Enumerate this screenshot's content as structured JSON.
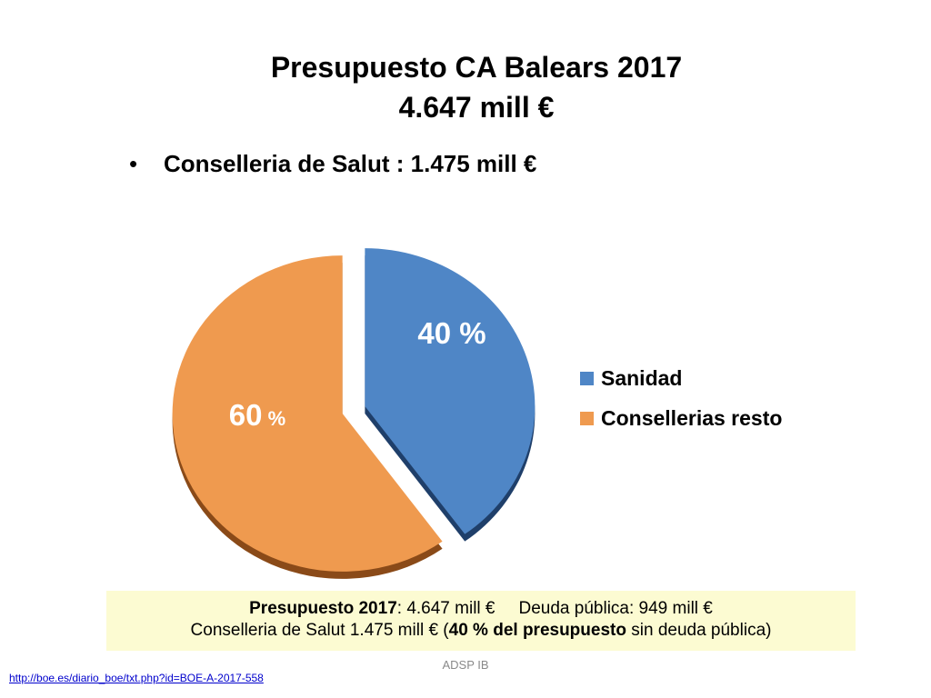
{
  "title": {
    "line1": "Presupuesto CA Balears 2017",
    "line2": "4.647 mill €"
  },
  "bullet": {
    "symbol": "•",
    "text": "Conselleria de Salut : 1.475 mill €"
  },
  "chart_data": {
    "type": "pie",
    "exploded": true,
    "categories": [
      "Sanidad",
      "Consellerias resto"
    ],
    "values": [
      40,
      60
    ],
    "data_labels": [
      {
        "number": "40",
        "unit": " %"
      },
      {
        "number": "60",
        "unit": " %"
      }
    ],
    "colors": [
      "#4f86c6",
      "#ef9a4f"
    ],
    "shadow_colors": [
      "#1f3f6a",
      "#8a4a18"
    ],
    "legend": {
      "position": "right",
      "entries": [
        "Sanidad",
        "Consellerias resto"
      ]
    }
  },
  "infobox": {
    "line1": {
      "label": "Presupuesto 2017",
      "value": ": 4.647 mill €",
      "debt": "Deuda pública: 949 mill €"
    },
    "line2": {
      "prefix": "Conselleria de Salut 1.475 mill € (",
      "bold": "40 % del presupuesto",
      "suffix": " sin deuda pública)"
    },
    "background": "#fcfbd2"
  },
  "footer": {
    "center": "ADSP IB",
    "link": "http://boe.es/diario_boe/txt.php?id=BOE-A-2017-558"
  }
}
